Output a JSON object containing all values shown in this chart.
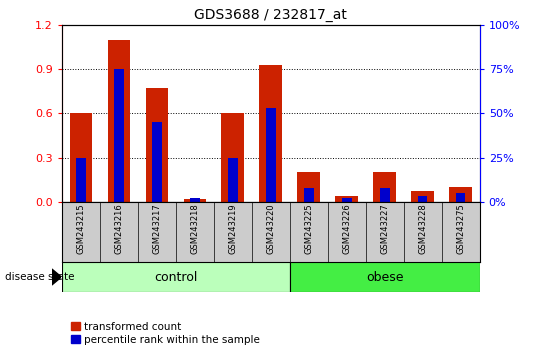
{
  "title": "GDS3688 / 232817_at",
  "samples": [
    "GSM243215",
    "GSM243216",
    "GSM243217",
    "GSM243218",
    "GSM243219",
    "GSM243220",
    "GSM243225",
    "GSM243226",
    "GSM243227",
    "GSM243228",
    "GSM243275"
  ],
  "transformed_count": [
    0.6,
    1.1,
    0.77,
    0.02,
    0.6,
    0.93,
    0.2,
    0.04,
    0.2,
    0.07,
    0.1
  ],
  "percentile_rank_pct": [
    25,
    75,
    45,
    2,
    25,
    53,
    8,
    2,
    8,
    3,
    5
  ],
  "groups": [
    {
      "label": "control",
      "start": 0,
      "end": 5,
      "color": "#AAFFAA"
    },
    {
      "label": "obese",
      "start": 6,
      "end": 10,
      "color": "#44DD44"
    }
  ],
  "ylim_left": [
    0,
    1.2
  ],
  "ylim_right": [
    0,
    100
  ],
  "yticks_left": [
    0,
    0.3,
    0.6,
    0.9,
    1.2
  ],
  "yticks_right": [
    0,
    25,
    50,
    75,
    100
  ],
  "bar_color_red": "#CC2200",
  "bar_color_blue": "#0000CC",
  "red_bar_width": 0.6,
  "blue_bar_width": 0.25,
  "tick_area_color": "#CCCCCC",
  "control_color": "#BBFFBB",
  "obese_color": "#44EE44",
  "label_disease_state": "disease state",
  "legend_red": "transformed count",
  "legend_blue": "percentile rank within the sample",
  "title_fontsize": 10
}
